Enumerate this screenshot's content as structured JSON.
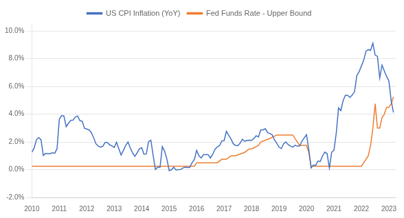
{
  "chart_data": {
    "type": "line",
    "series": [
      {
        "name": "US CPI Inflation (YoY)",
        "color": "#4472C4",
        "x": [
          2010.0,
          2010.083,
          2010.167,
          2010.25,
          2010.333,
          2010.417,
          2010.5,
          2010.583,
          2010.667,
          2010.75,
          2010.833,
          2010.917,
          2011.0,
          2011.083,
          2011.167,
          2011.25,
          2011.333,
          2011.417,
          2011.5,
          2011.583,
          2011.667,
          2011.75,
          2011.833,
          2011.917,
          2012.0,
          2012.083,
          2012.167,
          2012.25,
          2012.333,
          2012.417,
          2012.5,
          2012.583,
          2012.667,
          2012.75,
          2012.833,
          2012.917,
          2013.0,
          2013.083,
          2013.167,
          2013.25,
          2013.333,
          2013.417,
          2013.5,
          2013.583,
          2013.667,
          2013.75,
          2013.833,
          2013.917,
          2014.0,
          2014.083,
          2014.167,
          2014.25,
          2014.333,
          2014.417,
          2014.5,
          2014.583,
          2014.667,
          2014.75,
          2014.833,
          2014.917,
          2015.0,
          2015.083,
          2015.167,
          2015.25,
          2015.333,
          2015.417,
          2015.5,
          2015.583,
          2015.667,
          2015.75,
          2015.833,
          2015.917,
          2016.0,
          2016.083,
          2016.167,
          2016.25,
          2016.333,
          2016.417,
          2016.5,
          2016.583,
          2016.667,
          2016.75,
          2016.833,
          2016.917,
          2017.0,
          2017.083,
          2017.167,
          2017.25,
          2017.333,
          2017.417,
          2017.5,
          2017.583,
          2017.667,
          2017.75,
          2017.833,
          2017.917,
          2018.0,
          2018.083,
          2018.167,
          2018.25,
          2018.333,
          2018.417,
          2018.5,
          2018.583,
          2018.667,
          2018.75,
          2018.833,
          2018.917,
          2019.0,
          2019.083,
          2019.167,
          2019.25,
          2019.333,
          2019.417,
          2019.5,
          2019.583,
          2019.667,
          2019.75,
          2019.833,
          2019.917,
          2020.0,
          2020.083,
          2020.167,
          2020.25,
          2020.333,
          2020.417,
          2020.5,
          2020.583,
          2020.667,
          2020.75,
          2020.833,
          2020.917,
          2021.0,
          2021.083,
          2021.167,
          2021.25,
          2021.333,
          2021.417,
          2021.5,
          2021.583,
          2021.667,
          2021.75,
          2021.833,
          2021.917,
          2022.0,
          2022.083,
          2022.167,
          2022.25,
          2022.333,
          2022.417,
          2022.5,
          2022.583,
          2022.667,
          2022.75,
          2022.833,
          2022.917,
          2023.0,
          2023.083,
          2023.167
        ],
        "values": [
          0.0126,
          0.0156,
          0.0216,
          0.0231,
          0.0217,
          0.0103,
          0.0117,
          0.0115,
          0.0115,
          0.0122,
          0.0118,
          0.0151,
          0.0363,
          0.039,
          0.0387,
          0.031,
          0.0335,
          0.0356,
          0.0357,
          0.0379,
          0.0387,
          0.0353,
          0.035,
          0.0298,
          0.0293,
          0.0287,
          0.0267,
          0.023,
          0.0187,
          0.017,
          0.0162,
          0.0169,
          0.0196,
          0.0196,
          0.0179,
          0.0171,
          0.016,
          0.0198,
          0.0151,
          0.0106,
          0.0139,
          0.0175,
          0.02,
          0.0157,
          0.0122,
          0.0096,
          0.0121,
          0.015,
          0.0158,
          0.0111,
          0.0113,
          0.0202,
          0.0213,
          0.0102,
          0.0001,
          0.0017,
          0.0017,
          0.0166,
          0.0133,
          0.0076,
          -0.0007,
          0.0,
          0.0018,
          -0.0002,
          0.0,
          0.0001,
          0.0012,
          0.0018,
          0.0015,
          0.0017,
          0.005,
          0.0073,
          0.0139,
          0.01,
          0.0085,
          0.0109,
          0.0109,
          0.0109,
          0.0084,
          0.011,
          0.0146,
          0.0164,
          0.0173,
          0.0207,
          0.0209,
          0.0277,
          0.0248,
          0.0222,
          0.0187,
          0.0174,
          0.0173,
          0.0191,
          0.0219,
          0.0204,
          0.0211,
          0.0212,
          0.0211,
          0.0224,
          0.0245,
          0.0235,
          0.0287,
          0.0287,
          0.0295,
          0.0267,
          0.026,
          0.0252,
          0.0215,
          0.0191,
          0.0163,
          0.0152,
          0.0187,
          0.02,
          0.0181,
          0.017,
          0.0162,
          0.0176,
          0.017,
          0.017,
          0.0205,
          0.0229,
          0.0252,
          0.0147,
          0.0013,
          0.0033,
          0.0031,
          0.0062,
          0.0059,
          0.0099,
          0.0127,
          0.0116,
          0.0012,
          0.0126,
          0.014,
          0.0262,
          0.0445,
          0.0426,
          0.0498,
          0.0537,
          0.0535,
          0.0521,
          0.0539,
          0.0563,
          0.0678,
          0.0707,
          0.0748,
          0.0789,
          0.0854,
          0.0865,
          0.086,
          0.0912,
          0.0826,
          0.0817,
          0.066,
          0.0754,
          0.0712,
          0.0671,
          0.064,
          0.0497,
          0.0412
        ]
      },
      {
        "name": "Fed Funds Rate - Upper Bound",
        "color": "#ED7D31",
        "x": [
          2010.0,
          2010.083,
          2010.25,
          2010.5,
          2010.75,
          2011.0,
          2011.25,
          2011.5,
          2011.75,
          2012.0,
          2012.25,
          2012.5,
          2012.75,
          2013.0,
          2013.25,
          2013.5,
          2013.75,
          2014.0,
          2014.25,
          2014.5,
          2014.75,
          2015.0,
          2015.25,
          2015.5,
          2015.75,
          2015.917,
          2016.0,
          2016.25,
          2016.5,
          2016.75,
          2016.917,
          2017.0,
          2017.083,
          2017.25,
          2017.417,
          2017.75,
          2017.917,
          2018.0,
          2018.25,
          2018.333,
          2018.667,
          2018.917,
          2019.0,
          2019.5,
          2019.667,
          2019.75,
          2019.833,
          2019.917,
          2020.0,
          2020.083,
          2020.167,
          2020.25,
          2020.333,
          2020.5,
          2020.75,
          2021.0,
          2021.25,
          2021.5,
          2021.75,
          2021.917,
          2022.0,
          2022.083,
          2022.25,
          2022.333,
          2022.417,
          2022.5,
          2022.583,
          2022.667,
          2022.75,
          2022.833,
          2022.917,
          2023.0,
          2023.083,
          2023.167
        ],
        "values": [
          0.0025,
          0.0025,
          0.0025,
          0.0025,
          0.0025,
          0.0025,
          0.0025,
          0.0025,
          0.0025,
          0.0025,
          0.0025,
          0.0025,
          0.0025,
          0.0025,
          0.0025,
          0.0025,
          0.0025,
          0.0025,
          0.0025,
          0.0025,
          0.0025,
          0.0025,
          0.0025,
          0.0025,
          0.0025,
          0.0025,
          0.005,
          0.005,
          0.005,
          0.005,
          0.0075,
          0.0075,
          0.0075,
          0.01,
          0.01,
          0.0125,
          0.015,
          0.015,
          0.0175,
          0.02,
          0.0225,
          0.025,
          0.025,
          0.025,
          0.02,
          0.0175,
          0.0175,
          0.0175,
          0.0175,
          0.0125,
          0.0025,
          0.0025,
          0.0025,
          0.0025,
          0.0025,
          0.0025,
          0.0025,
          0.0025,
          0.0025,
          0.0025,
          0.0025,
          0.005,
          0.01,
          0.0175,
          0.03,
          0.0475,
          0.03,
          0.03,
          0.0375,
          0.04,
          0.045,
          0.045,
          0.0475,
          0.0525
        ]
      }
    ],
    "xlim": [
      2010.0,
      2023.25
    ],
    "xticks": [
      2010,
      2011,
      2012,
      2013,
      2014,
      2015,
      2016,
      2017,
      2018,
      2019,
      2020,
      2021,
      2022,
      2023
    ],
    "ylim": [
      -0.02,
      0.105
    ],
    "yticks": [
      {
        "value": -0.02,
        "label": "-2.0%"
      },
      {
        "value": 0.0,
        "label": "0.0%"
      },
      {
        "value": 0.02,
        "label": "2.0%"
      },
      {
        "value": 0.04,
        "label": "4.0%"
      },
      {
        "value": 0.06,
        "label": "6.0%"
      },
      {
        "value": 0.08,
        "label": "8.0%"
      },
      {
        "value": 0.1,
        "label": "10.0%"
      }
    ],
    "grid": "y",
    "legend": "top"
  }
}
